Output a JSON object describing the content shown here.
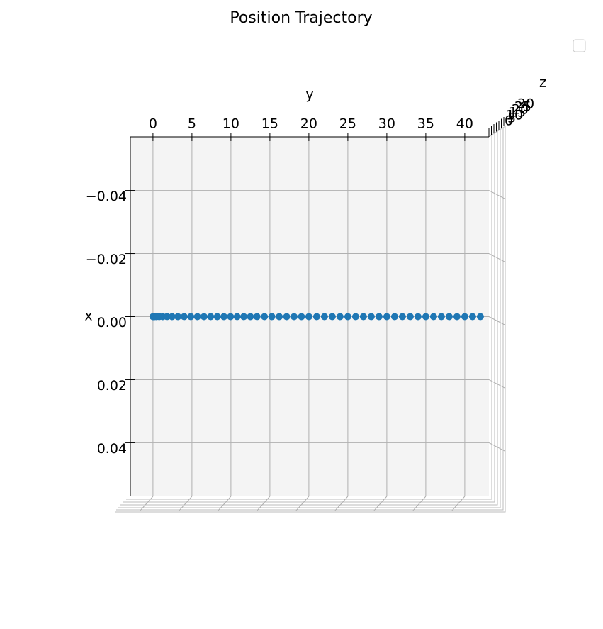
{
  "chart_data": {
    "type": "scatter3d_top",
    "title": "Position Trajectory",
    "xlabel": "x",
    "ylabel": "y",
    "zlabel": "z",
    "color": "#1f77b4",
    "x": [
      0,
      0,
      0,
      0,
      0,
      0,
      0,
      0,
      0,
      0,
      0,
      0,
      0,
      0,
      0,
      0,
      0,
      0,
      0,
      0,
      0,
      0,
      0,
      0,
      0,
      0,
      0,
      0,
      0,
      0,
      0,
      0,
      0,
      0,
      0,
      0,
      0,
      0,
      0,
      0,
      0,
      0,
      0,
      0,
      0,
      0,
      0,
      0,
      0,
      0
    ],
    "y": [
      0,
      0.05,
      0.2,
      0.45,
      0.8,
      1.25,
      1.8,
      2.45,
      3.2,
      4.0,
      4.85,
      5.7,
      6.55,
      7.4,
      8.25,
      9.1,
      9.95,
      10.8,
      11.65,
      12.5,
      13.35,
      14.3,
      15.25,
      16.2,
      17.15,
      18.1,
      19.05,
      20,
      21,
      22,
      23,
      24,
      25,
      26,
      27,
      28,
      29,
      30,
      31,
      32,
      33,
      34,
      35,
      36,
      37,
      38,
      39,
      40,
      41,
      42
    ],
    "xlim": [
      -0.057,
      0.057
    ],
    "xticks": [
      {
        "value": -0.04,
        "label": "−0.04"
      },
      {
        "value": -0.02,
        "label": "−0.02"
      },
      {
        "value": 0,
        "label": "0.00"
      },
      0.02,
      0.04
    ],
    "ylim": [
      -2.9,
      43.1
    ],
    "yticks": [
      0,
      5,
      10,
      15,
      20,
      25,
      30,
      35,
      40
    ],
    "zticks": [
      0,
      5,
      10,
      15,
      20,
      25,
      30
    ],
    "grid": true
  }
}
